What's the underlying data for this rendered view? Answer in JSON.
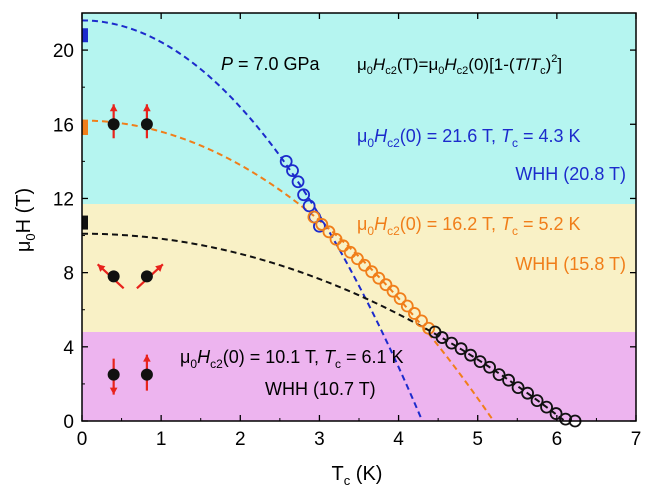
{
  "chart_data": {
    "type": "scatter",
    "title": "",
    "xlabel": "T",
    "xlabel_sub": "c",
    "xlabel_unit": " (K)",
    "ylabel": "μ",
    "ylabel_sub": "0",
    "ylabel_rest": "H (T)",
    "xlim": [
      0,
      7
    ],
    "ylim": [
      0,
      22
    ],
    "xticks": [
      0,
      1,
      2,
      3,
      4,
      5,
      6,
      7
    ],
    "yticks": [
      0,
      4,
      8,
      12,
      16,
      20
    ],
    "regions": [
      {
        "name": "cyan-region",
        "y0": 11.7,
        "y1": 22,
        "color": "#b5f5f0"
      },
      {
        "name": "yellow-region",
        "y0": 4.8,
        "y1": 11.7,
        "color": "#f9f1c6"
      },
      {
        "name": "magenta-region",
        "y0": 0,
        "y1": 4.8,
        "color": "#edb4ef"
      }
    ],
    "series": [
      {
        "name": "blue",
        "color": "#1c2bcc",
        "hc0": 21.6,
        "tc": 4.3,
        "points": [
          [
            2.58,
            14.0
          ],
          [
            2.66,
            13.5
          ],
          [
            2.73,
            12.9
          ],
          [
            2.8,
            12.2
          ],
          [
            2.87,
            11.6
          ],
          [
            2.94,
            11.0
          ],
          [
            3.0,
            10.5
          ]
        ]
      },
      {
        "name": "orange",
        "color": "#f07e1a",
        "hc0": 16.2,
        "tc": 5.2,
        "points": [
          [
            2.93,
            11.0
          ],
          [
            3.03,
            10.6
          ],
          [
            3.12,
            10.2
          ],
          [
            3.21,
            9.8
          ],
          [
            3.3,
            9.45
          ],
          [
            3.39,
            9.1
          ],
          [
            3.48,
            8.75
          ],
          [
            3.57,
            8.4
          ],
          [
            3.66,
            8.05
          ],
          [
            3.75,
            7.7
          ],
          [
            3.84,
            7.35
          ],
          [
            3.93,
            7.0
          ],
          [
            4.02,
            6.6
          ],
          [
            4.11,
            6.2
          ],
          [
            4.2,
            5.8
          ],
          [
            4.29,
            5.4
          ],
          [
            4.38,
            5.0
          ]
        ]
      },
      {
        "name": "black",
        "color": "#111111",
        "hc0": 10.1,
        "tc": 6.1,
        "points": [
          [
            4.46,
            4.8
          ],
          [
            4.55,
            4.5
          ],
          [
            4.67,
            4.2
          ],
          [
            4.79,
            3.9
          ],
          [
            4.91,
            3.55
          ],
          [
            5.03,
            3.2
          ],
          [
            5.15,
            2.9
          ],
          [
            5.27,
            2.5
          ],
          [
            5.39,
            2.2
          ],
          [
            5.51,
            1.8
          ],
          [
            5.63,
            1.5
          ],
          [
            5.75,
            1.1
          ],
          [
            5.87,
            0.75
          ],
          [
            5.99,
            0.4
          ],
          [
            6.11,
            0.1
          ],
          [
            6.23,
            0.0
          ]
        ]
      }
    ],
    "whh_markers": [
      {
        "name": "blue-whh-marker",
        "y": 20.8,
        "color": "#1c2bcc"
      },
      {
        "name": "orange-whh-marker",
        "y": 15.8,
        "color": "#f07e1a"
      },
      {
        "name": "black-whh-marker",
        "y": 10.7,
        "color": "#111111"
      }
    ],
    "spin_icons": [
      {
        "name": "spin-aligned-icon",
        "y": 16.0,
        "type": "aligned"
      },
      {
        "name": "spin-canted-icon",
        "y": 7.8,
        "type": "canted"
      },
      {
        "name": "spin-antiparallel-icon",
        "y": 2.5,
        "type": "antiparallel"
      }
    ],
    "annotations": {
      "pressure_p": "P",
      "pressure_value": " = 7.0 GPa",
      "formula": {
        "mu": "μ",
        "zero": "0",
        "H": "H",
        "c2": "c2",
        "T_arg": "(T)=",
        "H0": "(0)[1-(",
        "T": "T",
        "slash": "/",
        "Tc": "T",
        "c": "c",
        "close": ")",
        "sq": "2",
        "end": "]"
      },
      "blue_param": {
        "eq": "(0) = 21.6 T, ",
        "tc_label": "T",
        "tc_sub": "c",
        "tc_val": " = 4.3 K"
      },
      "blue_whh": "WHH (20.8 T)",
      "orange_param": {
        "eq": "(0) = 16.2 T, ",
        "tc_label": "T",
        "tc_sub": "c",
        "tc_val": " = 5.2 K"
      },
      "orange_whh": "WHH (15.8 T)",
      "black_param": {
        "eq": "(0) = 10.1 T, ",
        "tc_label": "T",
        "tc_sub": "c",
        "tc_val": " = 6.1 K"
      },
      "black_whh": "WHH (10.7 T)"
    },
    "colors": {
      "spin_arrow": "#e8231c",
      "dot": "#111111",
      "axis": "#000000"
    }
  }
}
